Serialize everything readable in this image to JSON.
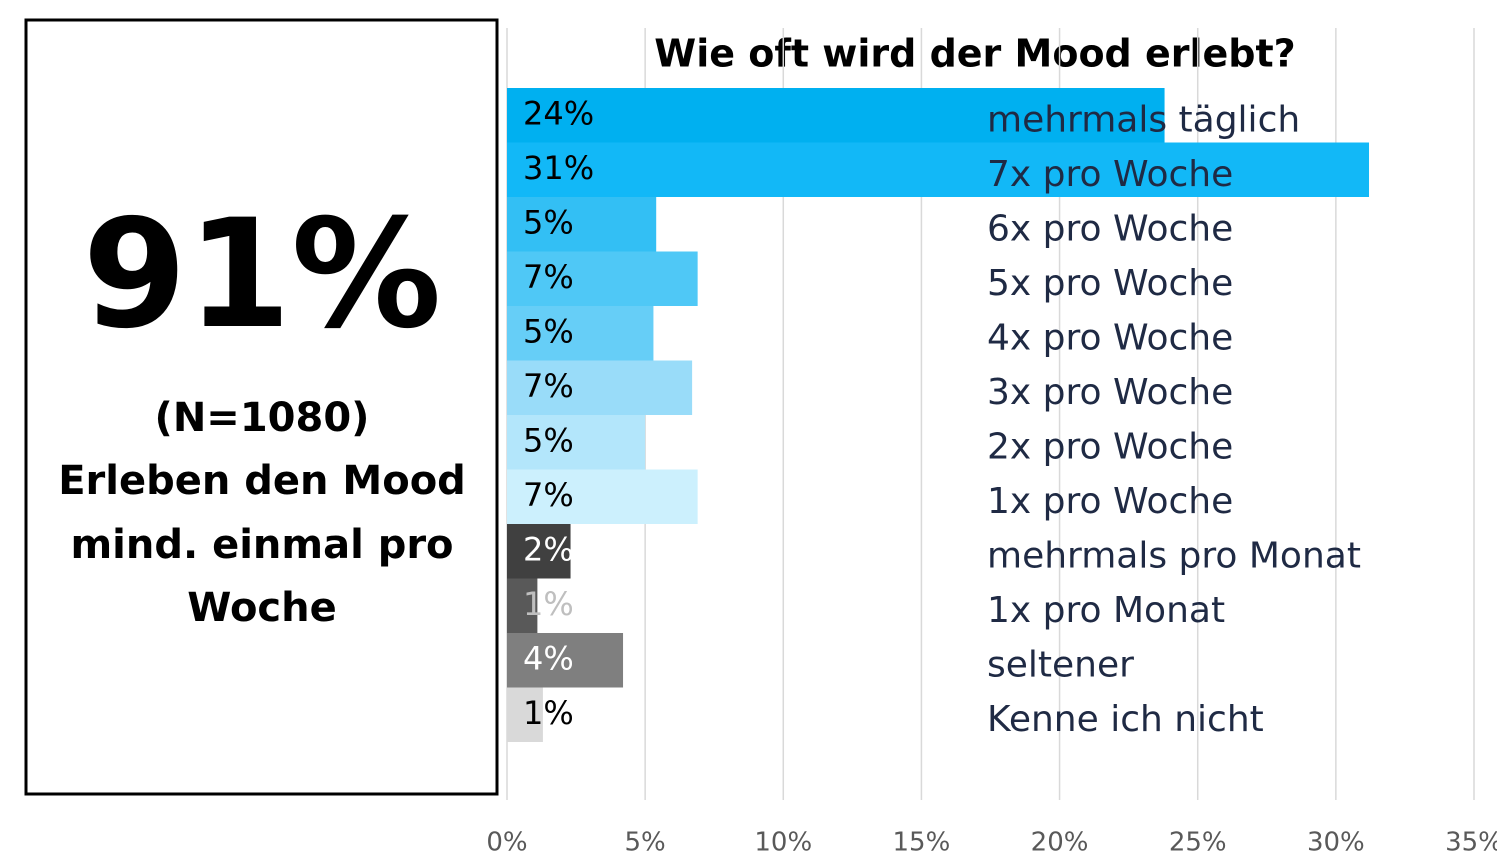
{
  "summary": {
    "headline": "91%",
    "lines": [
      "(N=1080)",
      "Erleben den Mood",
      "mind. einmal pro",
      "Woche"
    ]
  },
  "chart_data": {
    "type": "bar",
    "orientation": "horizontal",
    "title": "Wie oft wird der Mood erlebt?",
    "categories": [
      "mehrmals täglich",
      "7x pro Woche",
      "6x pro Woche",
      "5x pro Woche",
      "4x pro Woche",
      "3x pro Woche",
      "2x pro Woche",
      "1x pro Woche",
      "mehrmals pro Monat",
      "1x pro Monat",
      "seltener",
      "Kenne ich nicht"
    ],
    "values": [
      23.8,
      31.2,
      5.4,
      6.9,
      5.3,
      6.7,
      5.0,
      6.9,
      2.3,
      1.1,
      4.2,
      1.3
    ],
    "value_labels": [
      "24%",
      "31%",
      "5%",
      "7%",
      "5%",
      "7%",
      "5%",
      "7%",
      "2%",
      "1%",
      "4%",
      "1%"
    ],
    "colors": [
      "#00b0f0",
      "#12b8f7",
      "#33bff4",
      "#4fc8f6",
      "#66cef7",
      "#99dcf9",
      "#b3e6fb",
      "#ccf0fd",
      "#404040",
      "#595959",
      "#7f7f7f",
      "#d9d9d9"
    ],
    "label_colors": [
      "#000000",
      "#000000",
      "#000000",
      "#000000",
      "#000000",
      "#000000",
      "#000000",
      "#000000",
      "#ffffff",
      "#bfbfbf",
      "#ffffff",
      "#000000"
    ],
    "xlim": [
      0,
      35
    ],
    "xticks": [
      {
        "value": 0,
        "label": "0%"
      },
      {
        "value": 5,
        "label": "5%"
      },
      {
        "value": 10,
        "label": "10%"
      },
      {
        "value": 15,
        "label": "15%"
      },
      {
        "value": 20,
        "label": "20%"
      },
      {
        "value": 25,
        "label": "25%"
      },
      {
        "value": 30,
        "label": "30%"
      },
      {
        "value": 35,
        "label": "35%"
      }
    ],
    "grid": true
  }
}
